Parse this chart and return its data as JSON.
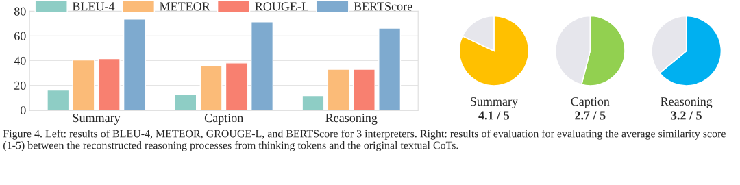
{
  "chart_data": [
    {
      "type": "bar",
      "categories": [
        "Summary",
        "Caption",
        "Reasoning"
      ],
      "ylim": [
        0,
        80
      ],
      "yticks": [
        0,
        20,
        40,
        60,
        80
      ],
      "grid": "y",
      "legend": "top",
      "series": [
        {
          "name": "BLEU-4",
          "color": "#8ecdc5",
          "values": [
            16.1,
            12.8,
            11.7
          ]
        },
        {
          "name": "METEOR",
          "color": "#fbbb78",
          "values": [
            40.5,
            35.7,
            33.0
          ]
        },
        {
          "name": "ROUGE-L",
          "color": "#f88070",
          "values": [
            41.6,
            38.1,
            33.0
          ]
        },
        {
          "name": "BERTScore",
          "color": "#7eaacf",
          "values": [
            73.6,
            71.4,
            66.3
          ]
        }
      ],
      "annotations": [
        "Figure 4. Left: results of BLEU-4, METEOR, GROUGE-L, and BERTScore for 3 interpreters. Right: results of evaluation for evaluating the average similarity score (1-5) between the reconstructed reasoning processes from thinking tokens and the original textual CoTs."
      ]
    },
    {
      "type": "pie",
      "xlabel": "Summary",
      "categories": [
        null,
        null
      ],
      "values": [
        82,
        18
      ],
      "colors": [
        "#ffc000",
        "#e6e6ec"
      ],
      "annotations": [
        "4.1 / 5"
      ]
    },
    {
      "type": "pie",
      "xlabel": "Caption",
      "categories": [
        null,
        null
      ],
      "values": [
        54,
        46
      ],
      "colors": [
        "#92d050",
        "#e6e6ec"
      ],
      "annotations": [
        "2.7 / 5"
      ]
    },
    {
      "type": "pie",
      "xlabel": "Reasoning",
      "categories": [
        null,
        null
      ],
      "values": [
        64,
        36
      ],
      "colors": [
        "#00b0f0",
        "#e6e6ec"
      ],
      "annotations": [
        "3.2 / 5"
      ]
    }
  ]
}
